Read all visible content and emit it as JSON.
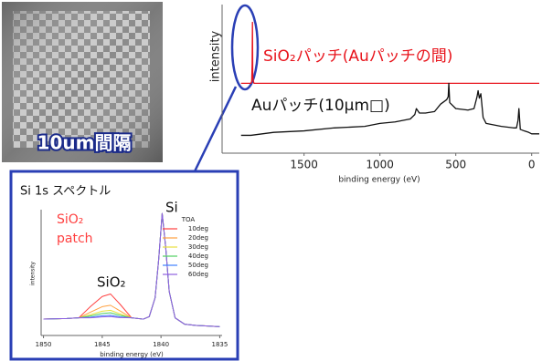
{
  "image": {
    "label": "10um間隔"
  },
  "chart_data": [
    {
      "type": "line",
      "x_label": "binding energy (eV)",
      "y_label": "intensity",
      "xlim": [
        2040,
        -50
      ],
      "ylim": [
        0,
        100
      ],
      "xticks": [
        1500,
        1000,
        500,
        0
      ],
      "annotations": [
        "SiO₂パッチ(Auパッチの間)",
        "Auパッチ(10μm□)"
      ],
      "series": [
        {
          "name": "SiO₂パッチ(Auパッチの間)",
          "color": "#e8141c",
          "x": [
            1915,
            1850,
            1845,
            1842,
            1840,
            1838,
            1835,
            1830,
            1500,
            1000,
            500,
            300,
            0,
            -50
          ],
          "values": [
            47,
            47,
            48,
            60,
            88,
            52,
            49,
            47,
            47,
            47,
            47,
            47,
            47,
            47
          ]
        },
        {
          "name": "Auパッチ(10μm□)",
          "color": "#111111",
          "x": [
            1915,
            1850,
            1700,
            1500,
            1300,
            1100,
            1000,
            900,
            800,
            770,
            760,
            740,
            700,
            640,
            600,
            560,
            550,
            546,
            540,
            500,
            420,
            380,
            360,
            353,
            345,
            335,
            320,
            300,
            200,
            120,
            100,
            90,
            84,
            75,
            50,
            20,
            0,
            -50
          ],
          "values": [
            12,
            12,
            14,
            15,
            17,
            18,
            20,
            21,
            23,
            26,
            30,
            27,
            27,
            28,
            33,
            36,
            38,
            47,
            34,
            30,
            29,
            30,
            38,
            42,
            37,
            40,
            24,
            20,
            18,
            17,
            17,
            22,
            30,
            16,
            15,
            14,
            13,
            13
          ]
        }
      ]
    },
    {
      "type": "line",
      "title": "Si 1s スペクトル",
      "x_label": "binding energy (eV)",
      "y_label": "intensity",
      "xlim": [
        1850.2,
        1834.8
      ],
      "ylim": [
        0,
        100
      ],
      "xticks": [
        1850,
        1845,
        1840,
        1835
      ],
      "legend_title": "TOA",
      "annotations": [
        "Si",
        "SiO₂",
        "SiO₂",
        "patch"
      ],
      "x": [
        1850,
        1848,
        1847,
        1846,
        1845,
        1844.3,
        1843.5,
        1842.5,
        1841.5,
        1841,
        1840.5,
        1840.2,
        1839.9,
        1839.6,
        1839.3,
        1838.8,
        1838,
        1837,
        1836,
        1835
      ],
      "series": [
        {
          "name": "10deg",
          "color": "#ff4040",
          "values": [
            13,
            13.5,
            14,
            23,
            31,
            33,
            25,
            14,
            13,
            15,
            30,
            60,
            97,
            70,
            35,
            14,
            9,
            8,
            7.5,
            7
          ]
        },
        {
          "name": "20deg",
          "color": "#ffa040",
          "values": [
            13,
            13.5,
            14,
            18.5,
            22.9,
            24,
            19.6,
            14,
            13,
            15,
            30,
            60,
            97,
            70,
            35,
            14,
            9,
            8,
            7.5,
            7
          ]
        },
        {
          "name": "30deg",
          "color": "#e8e040",
          "values": [
            13,
            13.5,
            14,
            16.5,
            19.3,
            20,
            17.2,
            14,
            13,
            15,
            30,
            60,
            97,
            70,
            35,
            14,
            9,
            8,
            7.5,
            7
          ]
        },
        {
          "name": "40deg",
          "color": "#50d060",
          "values": [
            13,
            13.5,
            14,
            15.5,
            17.5,
            18,
            16,
            14,
            13,
            15,
            30,
            60,
            97,
            70,
            35,
            14,
            9,
            8,
            7.5,
            7
          ]
        },
        {
          "name": "50deg",
          "color": "#4080ff",
          "values": [
            13,
            13.5,
            14,
            14.5,
            15.7,
            16,
            14.8,
            14,
            13,
            15,
            30,
            60,
            97,
            70,
            35,
            14,
            9,
            8,
            7.5,
            7
          ]
        },
        {
          "name": "60deg",
          "color": "#9060e0",
          "values": [
            13,
            13.5,
            14,
            14,
            14.8,
            15,
            14.2,
            14,
            13,
            15,
            30,
            60,
            97,
            70,
            35,
            14,
            9,
            8,
            7.5,
            7
          ]
        }
      ]
    }
  ]
}
